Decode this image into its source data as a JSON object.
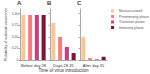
{
  "chart_data": [
    {
      "type": "bar",
      "title": "A",
      "xlabel": "Before day 28",
      "ylabel": "Probability of outbreak occurrence",
      "categories": [
        "Nonvaccinated",
        "Preimmunity phase",
        "Transition phase",
        "Immunity phase"
      ],
      "values": [
        0.97,
        0.97,
        0.97,
        0.97
      ],
      "colors": [
        "#f5c89a",
        "#f08080",
        "#c94080",
        "#7b1535"
      ],
      "ylim": [
        0,
        1.1
      ],
      "yticks": [
        0,
        0.25,
        {
          "value": 0.5,
          "label": "0.50"
        },
        0.75,
        {
          "value": 1.0,
          "label": "1.00"
        }
      ],
      "grid": false,
      "tick_labels": "y"
    },
    {
      "type": "bar",
      "title": "B",
      "xlabel": "Days 28-35",
      "categories": [
        "Nonvaccinated",
        "Preimmunity phase",
        "Transition phase",
        "Immunity phase"
      ],
      "values": [
        0.8,
        0.5,
        0.28,
        0.15
      ],
      "colors": [
        "#f5c89a",
        "#f08080",
        "#c94080",
        "#7b1535"
      ],
      "ylim": [
        0,
        1.1
      ],
      "yticks": [
        0,
        0.25,
        0.5,
        0.75,
        1.0
      ],
      "grid": false,
      "tick_labels": false
    },
    {
      "type": "bar",
      "title": "C",
      "xlabel": "After day 35",
      "categories": [
        "Nonvaccinated",
        "Preimmunity phase",
        "Transition phase",
        "Immunity phase"
      ],
      "values": [
        0.5,
        0.04,
        0.015,
        0.07
      ],
      "colors": [
        "#f5c89a",
        "#f08080",
        "#c94080",
        "#7b1535"
      ],
      "ylim": [
        0,
        1.1
      ],
      "yticks": [
        0,
        0.25,
        0.5,
        0.75,
        1.0
      ],
      "grid": false,
      "tick_labels": false,
      "legend": "upper right"
    }
  ],
  "xlabel": "Time of virus introduction"
}
